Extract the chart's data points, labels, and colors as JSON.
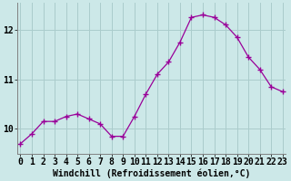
{
  "x": [
    0,
    1,
    2,
    3,
    4,
    5,
    6,
    7,
    8,
    9,
    10,
    11,
    12,
    13,
    14,
    15,
    16,
    17,
    18,
    19,
    20,
    21,
    22,
    23
  ],
  "y": [
    9.7,
    9.9,
    10.15,
    10.15,
    10.25,
    10.3,
    10.2,
    10.1,
    9.85,
    9.85,
    10.25,
    10.7,
    11.1,
    11.35,
    11.75,
    12.25,
    12.3,
    12.25,
    12.1,
    11.85,
    11.45,
    11.2,
    10.85,
    10.75
  ],
  "line_color": "#990099",
  "marker": "+",
  "marker_size": 4,
  "marker_linewidth": 1.0,
  "bg_color": "#cce8e8",
  "grid_color": "#aacccc",
  "xlabel": "Windchill (Refroidissement éolien,°C)",
  "xlabel_fontsize": 7,
  "tick_fontsize": 7,
  "ylim": [
    9.5,
    12.55
  ],
  "yticks": [
    10,
    11,
    12
  ],
  "xticks": [
    0,
    1,
    2,
    3,
    4,
    5,
    6,
    7,
    8,
    9,
    10,
    11,
    12,
    13,
    14,
    15,
    16,
    17,
    18,
    19,
    20,
    21,
    22,
    23
  ],
  "line_width": 0.9,
  "spine_color": "#808080",
  "xlim": [
    -0.3,
    23.3
  ]
}
